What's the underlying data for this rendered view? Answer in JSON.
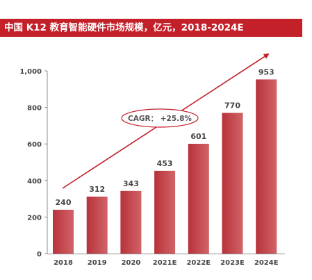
{
  "title": "中国 K12 教育智能硬件市场规模，亿元，2018-2024E",
  "colors": {
    "accent": "#c4202a",
    "bar": "#c0393f",
    "bar_light": "#cf5d61",
    "trend": "#c4202a"
  },
  "chart_data": {
    "type": "bar",
    "categories": [
      "2018",
      "2019",
      "2020",
      "2021E",
      "2022E",
      "2023E",
      "2024E"
    ],
    "values": [
      240,
      312,
      343,
      453,
      601,
      770,
      953
    ],
    "ylim": [
      0,
      1000
    ],
    "yticks": [
      "0",
      "200",
      "400",
      "600",
      "800",
      "1,000"
    ],
    "annotation": "CAGR： +25.8%",
    "grid": false,
    "legend": "none"
  }
}
